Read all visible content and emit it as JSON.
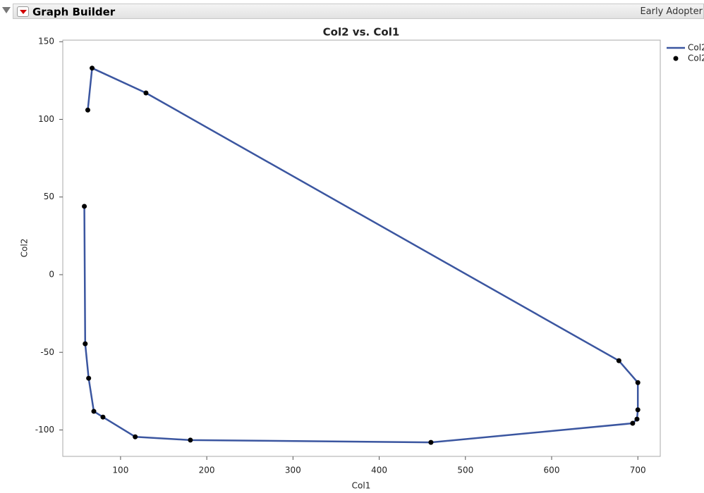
{
  "window": {
    "title": "Graph Builder",
    "badge": "Early Adopter"
  },
  "chart_data": {
    "type": "line",
    "title": "Col2 vs. Col1",
    "x_label": "Col1",
    "y_label": "Col2",
    "x": [
      62,
      67,
      129.5,
      678,
      700,
      700,
      699,
      694,
      460,
      181,
      117,
      79.6,
      69,
      63,
      59,
      58
    ],
    "series": [
      {
        "name": "Col2",
        "color": "#3b56a0",
        "marker_color": "#000000",
        "values": [
          106,
          133,
          117,
          -55.4,
          -69.5,
          -87,
          -93,
          -95.7,
          -108,
          -106.5,
          -104.4,
          -91.7,
          -88,
          -66.7,
          -44.5,
          44
        ]
      }
    ],
    "xlim": [
      33,
      726
    ],
    "ylim": [
      -117,
      151
    ],
    "xticks": [
      100,
      200,
      300,
      400,
      500,
      600,
      700
    ],
    "yticks": [
      -100,
      -50,
      0,
      50,
      100,
      150
    ],
    "grid": false,
    "legend": "right"
  }
}
